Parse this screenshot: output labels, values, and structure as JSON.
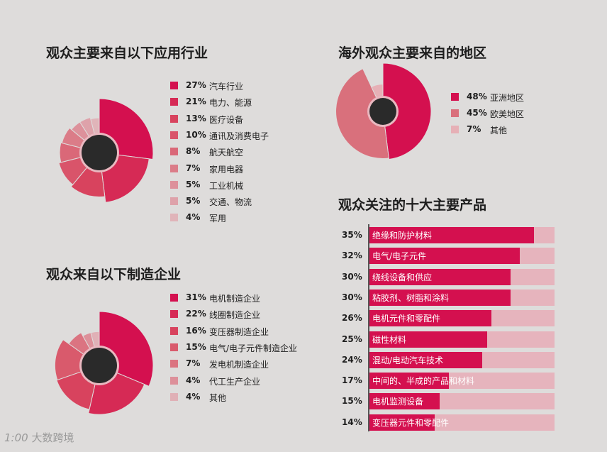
{
  "colors": {
    "background": "#dedcdb",
    "hole": "#2a2a2a",
    "bar_fill": "#d4104f",
    "bar_track": "#e6b4bd"
  },
  "watermark": "大数跨境",
  "chart_data": [
    {
      "id": "industries",
      "type": "pie",
      "title": "观众主要来自以下应用行业",
      "slices": [
        {
          "label": "汽车行业",
          "pct_text": "27%",
          "value": 27,
          "color": "#d4104f"
        },
        {
          "label": "电力、能源",
          "pct_text": "21%",
          "value": 21,
          "color": "#d62a55"
        },
        {
          "label": "医疗设备",
          "pct_text": "13%",
          "value": 13,
          "color": "#d8435e"
        },
        {
          "label": "通讯及消费电子",
          "pct_text": "10%",
          "value": 10,
          "color": "#d9546a"
        },
        {
          "label": "航天航空",
          "pct_text": "8%",
          "value": 8,
          "color": "#da6878"
        },
        {
          "label": "家用电器",
          "pct_text": "7%",
          "value": 7,
          "color": "#db7c88"
        },
        {
          "label": "工业机械",
          "pct_text": "5%",
          "value": 5,
          "color": "#dd919b"
        },
        {
          "label": "交通、物流",
          "pct_text": "5%",
          "value": 5,
          "color": "#dea2aa"
        },
        {
          "label": "军用",
          "pct_text": "4%",
          "value": 4,
          "color": "#e0b4b9"
        }
      ]
    },
    {
      "id": "manufacturers",
      "type": "pie",
      "title": "观众来自以下制造企业",
      "slices": [
        {
          "label": "电机制造企业",
          "pct_text": "31%",
          "value": 31,
          "color": "#d4104f"
        },
        {
          "label": "线圈制造企业",
          "pct_text": "22%",
          "value": 22,
          "color": "#d62a55"
        },
        {
          "label": "变压器制造企业",
          "pct_text": "16%",
          "value": 16,
          "color": "#d8435e"
        },
        {
          "label": "电气/电子元件制造企业",
          "pct_text": "15%",
          "value": 15,
          "color": "#d95a6c"
        },
        {
          "label": "发电机制造企业",
          "pct_text": "7%",
          "value": 7,
          "color": "#db7481"
        },
        {
          "label": "代工生产企业",
          "pct_text": "4%",
          "value": 4,
          "color": "#dd909a"
        },
        {
          "label": "其他",
          "pct_text": "4%",
          "value": 4,
          "color": "#e0b0b6"
        }
      ]
    },
    {
      "id": "regions",
      "type": "pie",
      "title": "海外观众主要来自的地区",
      "slices": [
        {
          "label": "亚洲地区",
          "pct_text": "48%",
          "value": 48,
          "color": "#d4104f"
        },
        {
          "label": "欧美地区",
          "pct_text": "45%",
          "value": 45,
          "color": "#d9707c"
        },
        {
          "label": "其他",
          "pct_text": "7%",
          "value": 7,
          "color": "#e6b0b6"
        }
      ]
    },
    {
      "id": "products",
      "type": "bar",
      "title": "观众关注的十大主要产品",
      "categories": [
        "绝缘和防护材料",
        "电气/电子元件",
        "绕线设备和供应",
        "粘胶剂、树脂和涂料",
        "电机元件和零配件",
        "磁性材料",
        "混动/电动汽车技术",
        "中间的、半成的产品和材料",
        "电机监测设备",
        "变压器元件和零配件"
      ],
      "pct_text": [
        "35%",
        "32%",
        "30%",
        "30%",
        "26%",
        "25%",
        "24%",
        "17%",
        "15%",
        "14%"
      ],
      "values": [
        35,
        32,
        30,
        30,
        26,
        25,
        24,
        17,
        15,
        14
      ],
      "xlim": [
        0,
        35
      ]
    }
  ]
}
